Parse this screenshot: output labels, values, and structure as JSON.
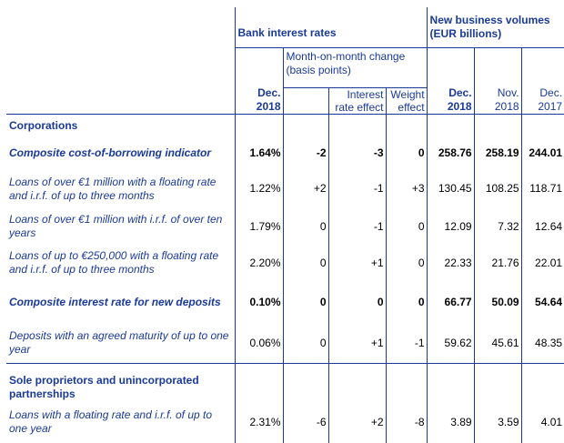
{
  "header": {
    "bank_interest_rates": "Bank interest rates",
    "new_business_volumes": "New business volumes (EUR billions)",
    "mom_change": "Month-on-month change (basis points)",
    "columns": {
      "rate_dec2018": [
        "Dec.",
        "2018"
      ],
      "interest_rate_effect": [
        "Interest",
        "rate effect"
      ],
      "weight_effect": [
        "Weight",
        "effect"
      ],
      "vol_dec2018": [
        "Dec.",
        "2018"
      ],
      "vol_nov2018": [
        "Nov.",
        "2018"
      ],
      "vol_dec2017": [
        "Dec.",
        "2017"
      ]
    }
  },
  "sections": [
    {
      "title": "Corporations"
    },
    {
      "title": "Sole proprietors and unincorporated partnerships"
    }
  ],
  "rows": [
    {
      "label": "Composite cost-of-borrowing indicator",
      "rate": "1.64%",
      "mom": "-2",
      "ir_effect": "-3",
      "w_effect": "0",
      "v_dec18": "258.76",
      "v_nov18": "258.19",
      "v_dec17": "244.01"
    },
    {
      "label": "Loans of over €1 million with a floating rate and i.r.f. of up to three months",
      "rate": "1.22%",
      "mom": "+2",
      "ir_effect": "-1",
      "w_effect": "+3",
      "v_dec18": "130.45",
      "v_nov18": "108.25",
      "v_dec17": "118.71"
    },
    {
      "label": "Loans of over €1 million with i.r.f. of over ten years",
      "rate": "1.79%",
      "mom": "0",
      "ir_effect": "-1",
      "w_effect": "0",
      "v_dec18": "12.09",
      "v_nov18": "7.32",
      "v_dec17": "12.64"
    },
    {
      "label": "Loans of up to €250,000 with a floating rate and i.r.f. of up to three months",
      "rate": "2.20%",
      "mom": "0",
      "ir_effect": "+1",
      "w_effect": "0",
      "v_dec18": "22.33",
      "v_nov18": "21.76",
      "v_dec17": "22.01"
    },
    {
      "label": "Composite interest rate for new deposits",
      "rate": "0.10%",
      "mom": "0",
      "ir_effect": "0",
      "w_effect": "0",
      "v_dec18": "66.77",
      "v_nov18": "50.09",
      "v_dec17": "54.64"
    },
    {
      "label": "Deposits with an agreed maturity of up to one year",
      "rate": "0.06%",
      "mom": "0",
      "ir_effect": "+1",
      "w_effect": "-1",
      "v_dec18": "59.62",
      "v_nov18": "45.61",
      "v_dec17": "48.35"
    },
    {
      "label": "Loans with a floating rate and i.r.f. of up to one year",
      "rate": "2.31%",
      "mom": "-6",
      "ir_effect": "+2",
      "w_effect": "-8",
      "v_dec18": "3.89",
      "v_nov18": "3.59",
      "v_dec17": "4.01"
    }
  ]
}
